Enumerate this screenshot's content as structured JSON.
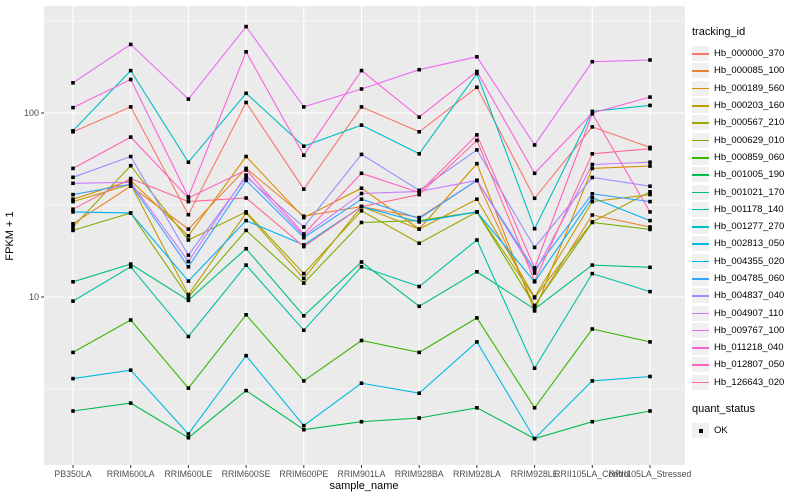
{
  "chart_data": {
    "type": "line",
    "title": "",
    "xlabel": "sample_name",
    "ylabel": "FPKM + 1",
    "x_categories": [
      "PB350LA",
      "RRIM600LA",
      "RRIM600LE",
      "RRIM600SE",
      "RRIM600PE",
      "RRIM901LA",
      "RRIM928BA",
      "RRIM928LA",
      "RRIM928LE",
      "RRII105LA_Control",
      "RRII105LA_Stressed"
    ],
    "y_scale": "log10",
    "ylim": [
      1.1,
      380
    ],
    "y_major_ticks": [
      {
        "label": "100",
        "value": 100
      },
      {
        "label": "10",
        "value": 10
      }
    ],
    "y_minor_gridlines": [
      316.23,
      31.62,
      3.162
    ],
    "grid": true,
    "legend_position": "right",
    "legend_title": "tracking_id",
    "marker": {
      "shape": "square",
      "color": "#000000"
    },
    "series": [
      {
        "name": "Hb_000000_370",
        "color": "#F8766D",
        "values": [
          79,
          108,
          28,
          114,
          38.6,
          108,
          79,
          138,
          34.4,
          84,
          65
        ]
      },
      {
        "name": "Hb_000085_100",
        "color": "#EA8331",
        "values": [
          25,
          40,
          23.4,
          50,
          27.5,
          31,
          27,
          43,
          8.9,
          27.9,
          24
        ]
      },
      {
        "name": "Hb_000189_560",
        "color": "#D89000",
        "values": [
          34,
          43,
          21.5,
          58,
          27,
          39,
          23.4,
          53,
          8.4,
          50,
          51.5
        ]
      },
      {
        "name": "Hb_000203_160",
        "color": "#C09B00",
        "values": [
          33,
          41,
          10.3,
          28.6,
          12.6,
          31,
          23.4,
          34,
          10,
          33,
          36
        ]
      },
      {
        "name": "Hb_000567_210",
        "color": "#A3A500",
        "values": [
          24,
          51.7,
          20.4,
          29,
          13.4,
          29.4,
          19.6,
          29,
          9.9,
          25.6,
          37.3
        ]
      },
      {
        "name": "Hb_000629_010",
        "color": "#7CAE00",
        "values": [
          23,
          28.6,
          10,
          23,
          11.9,
          25.4,
          26,
          29,
          9,
          25.4,
          23.3
        ]
      },
      {
        "name": "Hb_000859_060",
        "color": "#39B600",
        "values": [
          5,
          7.5,
          3.2,
          8,
          3.5,
          5.8,
          5,
          7.7,
          2.5,
          6.7,
          5.7
        ]
      },
      {
        "name": "Hb_001005_190",
        "color": "#00BB4E",
        "values": [
          2.4,
          2.65,
          1.72,
          3.1,
          1.9,
          2.1,
          2.2,
          2.5,
          1.7,
          2.1,
          2.4
        ]
      },
      {
        "name": "Hb_001021_170",
        "color": "#00BF7D",
        "values": [
          12.1,
          15.1,
          9.6,
          18.3,
          7.9,
          15.5,
          8.9,
          13.7,
          8.6,
          14.9,
          14.5
        ]
      },
      {
        "name": "Hb_001178_140",
        "color": "#00C1A3",
        "values": [
          9.5,
          14.6,
          6.1,
          14.9,
          6.6,
          14.6,
          11.4,
          20.4,
          4.1,
          13.4,
          10.7
        ]
      },
      {
        "name": "Hb_001277_270",
        "color": "#00BFC4",
        "values": [
          80,
          170,
          54,
          128,
          66,
          86,
          60,
          164,
          23.5,
          102,
          110
        ]
      },
      {
        "name": "Hb_002813_050",
        "color": "#00BAE0",
        "values": [
          3.6,
          4,
          1.8,
          4.8,
          2,
          3.4,
          3,
          5.7,
          1.7,
          3.5,
          3.7
        ]
      },
      {
        "name": "Hb_004355_020",
        "color": "#00B0F6",
        "values": [
          29,
          28.6,
          12.2,
          26,
          19.2,
          31,
          25.6,
          29,
          12.1,
          34.6,
          26
        ]
      },
      {
        "name": "Hb_004785_060",
        "color": "#35A2FF",
        "values": [
          36,
          41,
          14.6,
          43,
          21,
          34,
          26.7,
          43,
          14,
          36.4,
          33
        ]
      },
      {
        "name": "Hb_004837_040",
        "color": "#9590FF",
        "values": [
          44.7,
          58,
          16.9,
          45,
          24,
          59.6,
          38,
          63,
          18.6,
          44.6,
          40
        ]
      },
      {
        "name": "Hb_004907_110",
        "color": "#C77CFF",
        "values": [
          41.5,
          42,
          15.6,
          46,
          21.5,
          36.5,
          37.5,
          43,
          13.5,
          52.5,
          54
        ]
      },
      {
        "name": "Hb_009767_100",
        "color": "#E76BF3",
        "values": [
          146,
          236,
          119,
          295,
          108,
          135,
          172,
          202,
          67,
          190,
          194
        ]
      },
      {
        "name": "Hb_011218_040",
        "color": "#FA62DB",
        "values": [
          107,
          152,
          35,
          215,
          59,
          170,
          95,
          168,
          47,
          100,
          122
        ]
      },
      {
        "name": "Hb_012807_050",
        "color": "#FF62BC",
        "values": [
          50,
          74,
          34.5,
          49,
          22,
          47,
          37,
          76,
          14.4,
          99,
          29
        ]
      },
      {
        "name": "Hb_126643_020",
        "color": "#FF6A98",
        "values": [
          30,
          44,
          33,
          34.5,
          18.8,
          31,
          36,
          71,
          12.2,
          60,
          64
        ]
      }
    ],
    "quant_legend": {
      "title": "quant_status",
      "items": [
        {
          "label": "OK",
          "marker": "black-square"
        }
      ]
    }
  },
  "theme": {
    "panel_bg": "#EBEBEB",
    "grid_color": "#FFFFFF",
    "axis_text_color": "#4D4D4D",
    "tick_color": "#333333",
    "text_color": "#000000",
    "marker_color": "#000000"
  }
}
